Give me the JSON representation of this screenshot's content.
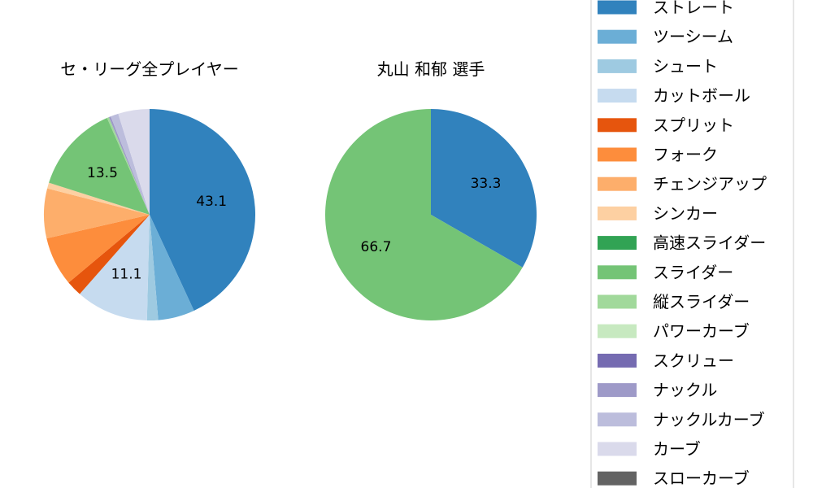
{
  "chart_data": [
    {
      "type": "pie",
      "title": "セ・リーグ全プレイヤー",
      "start_angle": "top, clockwise",
      "categories": [
        "ストレート",
        "ツーシーム",
        "シュート",
        "カットボール",
        "スプリット",
        "フォーク",
        "チェンジアップ",
        "シンカー",
        "スライダー",
        "縦スライダー",
        "ナックル",
        "ナックルカーブ",
        "カーブ"
      ],
      "values": [
        43.1,
        5.6,
        1.7,
        11.1,
        2.4,
        7.5,
        7.6,
        0.9,
        13.5,
        0.3,
        0.3,
        1.2,
        4.8
      ],
      "data_labels": [
        "43.1",
        "",
        "",
        "11.1",
        "",
        "",
        "",
        "",
        "13.5",
        "",
        "",
        "",
        ""
      ]
    },
    {
      "type": "pie",
      "title": "丸山 和郁  選手",
      "start_angle": "top, clockwise",
      "categories": [
        "ストレート",
        "スライダー"
      ],
      "values": [
        33.3,
        66.7
      ],
      "data_labels": [
        "33.3",
        "66.7"
      ]
    }
  ],
  "legend": {
    "placement": "right",
    "items": [
      {
        "label": "ストレート",
        "color": "#3182bd"
      },
      {
        "label": "ツーシーム",
        "color": "#6baed6"
      },
      {
        "label": "シュート",
        "color": "#9ecae1"
      },
      {
        "label": "カットボール",
        "color": "#c6dbef"
      },
      {
        "label": "スプリット",
        "color": "#e6550d"
      },
      {
        "label": "フォーク",
        "color": "#fd8d3c"
      },
      {
        "label": "チェンジアップ",
        "color": "#fdae6b"
      },
      {
        "label": "シンカー",
        "color": "#fdd0a2"
      },
      {
        "label": "高速スライダー",
        "color": "#31a354"
      },
      {
        "label": "スライダー",
        "color": "#74c476"
      },
      {
        "label": "縦スライダー",
        "color": "#a1d99b"
      },
      {
        "label": "パワーカーブ",
        "color": "#c7e9c0"
      },
      {
        "label": "スクリュー",
        "color": "#756bb1"
      },
      {
        "label": "ナックル",
        "color": "#9e9ac8"
      },
      {
        "label": "ナックルカーブ",
        "color": "#bcbddc"
      },
      {
        "label": "カーブ",
        "color": "#dadaeb"
      },
      {
        "label": "スローカーブ",
        "color": "#636363"
      }
    ]
  }
}
